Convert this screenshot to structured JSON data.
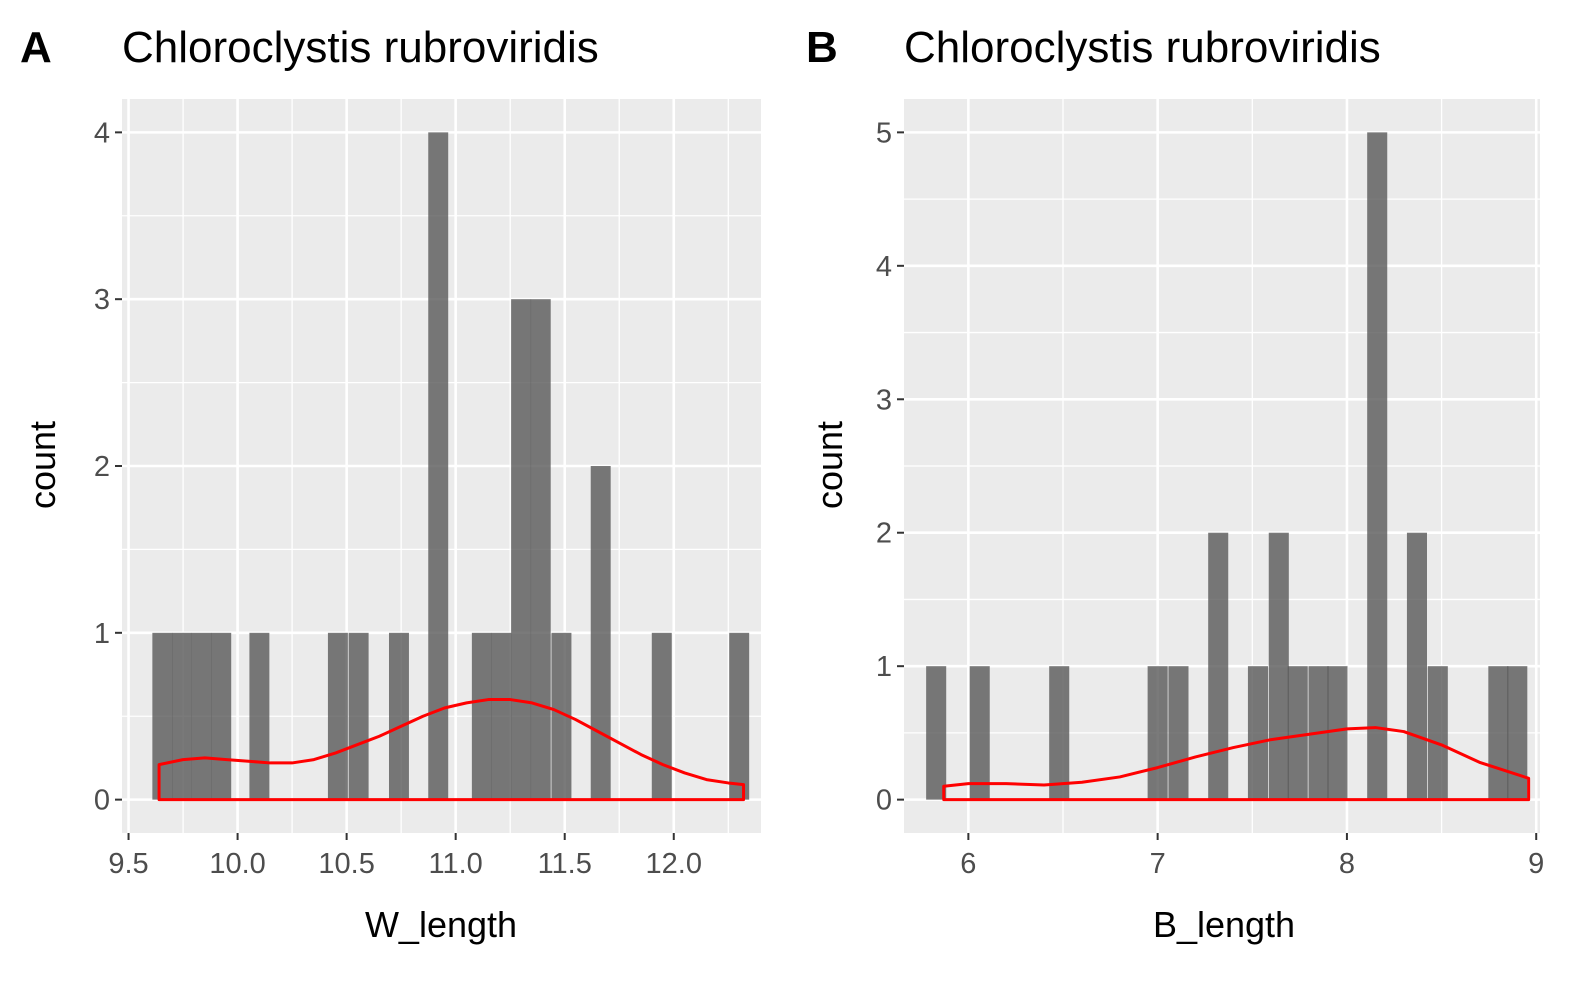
{
  "colors": {
    "panel_background": "#ebebeb",
    "grid": "#ffffff",
    "bar": "#595959",
    "density": "#ff0000",
    "tick_label": "#4d4d4d",
    "text": "#000000"
  },
  "chart_data": [
    {
      "panel_label": "A",
      "type": "bar",
      "title": "Chloroclystis rubroviridis",
      "xlabel": "W_length",
      "ylabel": "count",
      "xlim": [
        9.47,
        12.4
      ],
      "ylim": [
        -0.2,
        4.2
      ],
      "x_ticks": [
        9.5,
        10.0,
        10.5,
        11.0,
        11.5,
        12.0
      ],
      "x_tick_labels": [
        "9.5",
        "10.0",
        "10.5",
        "11.0",
        "11.5",
        "12.0"
      ],
      "y_ticks": [
        0,
        1,
        2,
        3,
        4
      ],
      "y_tick_labels": [
        "0",
        "1",
        "2",
        "3",
        "4"
      ],
      "grid": true,
      "bin_width": 0.0915,
      "bars": [
        {
          "x": 9.655,
          "count": 1
        },
        {
          "x": 9.745,
          "count": 1
        },
        {
          "x": 9.835,
          "count": 1
        },
        {
          "x": 9.925,
          "count": 1
        },
        {
          "x": 10.1,
          "count": 1
        },
        {
          "x": 10.46,
          "count": 1
        },
        {
          "x": 10.555,
          "count": 1
        },
        {
          "x": 10.74,
          "count": 1
        },
        {
          "x": 10.92,
          "count": 4
        },
        {
          "x": 11.12,
          "count": 1
        },
        {
          "x": 11.21,
          "count": 1
        },
        {
          "x": 11.3,
          "count": 3
        },
        {
          "x": 11.39,
          "count": 3
        },
        {
          "x": 11.485,
          "count": 1
        },
        {
          "x": 11.665,
          "count": 2
        },
        {
          "x": 11.945,
          "count": 1
        },
        {
          "x": 12.3,
          "count": 1
        }
      ],
      "density": {
        "x": [
          9.64,
          9.75,
          9.85,
          9.95,
          10.05,
          10.15,
          10.25,
          10.35,
          10.45,
          10.55,
          10.65,
          10.75,
          10.85,
          10.95,
          11.05,
          11.15,
          11.25,
          11.35,
          11.45,
          11.55,
          11.65,
          11.75,
          11.85,
          11.95,
          12.05,
          12.15,
          12.25,
          12.32
        ],
        "y": [
          0.21,
          0.24,
          0.25,
          0.24,
          0.23,
          0.22,
          0.22,
          0.24,
          0.28,
          0.33,
          0.38,
          0.44,
          0.5,
          0.55,
          0.58,
          0.6,
          0.6,
          0.58,
          0.54,
          0.48,
          0.41,
          0.34,
          0.27,
          0.21,
          0.16,
          0.12,
          0.1,
          0.09
        ]
      }
    },
    {
      "panel_label": "B",
      "type": "bar",
      "title": "Chloroclystis rubroviridis",
      "xlabel": "B_length",
      "ylabel": "count",
      "xlim": [
        5.66,
        9.02
      ],
      "ylim": [
        -0.25,
        5.25
      ],
      "x_ticks": [
        6,
        7,
        8,
        9
      ],
      "x_tick_labels": [
        "6",
        "7",
        "8",
        "9"
      ],
      "y_ticks": [
        0,
        1,
        2,
        3,
        4,
        5
      ],
      "y_tick_labels": [
        "0",
        "1",
        "2",
        "3",
        "4",
        "5"
      ],
      "grid": true,
      "bin_width": 0.106,
      "bars": [
        {
          "x": 5.83,
          "count": 1
        },
        {
          "x": 6.06,
          "count": 1
        },
        {
          "x": 6.48,
          "count": 1
        },
        {
          "x": 7.0,
          "count": 1
        },
        {
          "x": 7.11,
          "count": 1
        },
        {
          "x": 7.32,
          "count": 2
        },
        {
          "x": 7.53,
          "count": 1
        },
        {
          "x": 7.64,
          "count": 2
        },
        {
          "x": 7.74,
          "count": 1
        },
        {
          "x": 7.85,
          "count": 1
        },
        {
          "x": 7.95,
          "count": 1
        },
        {
          "x": 8.16,
          "count": 5
        },
        {
          "x": 8.37,
          "count": 2
        },
        {
          "x": 8.48,
          "count": 1
        },
        {
          "x": 8.8,
          "count": 1
        },
        {
          "x": 8.9,
          "count": 1
        }
      ],
      "density": {
        "x": [
          5.87,
          6.0,
          6.2,
          6.4,
          6.6,
          6.8,
          7.0,
          7.2,
          7.4,
          7.6,
          7.8,
          8.0,
          8.15,
          8.3,
          8.5,
          8.7,
          8.96
        ],
        "y": [
          0.1,
          0.12,
          0.12,
          0.11,
          0.13,
          0.17,
          0.24,
          0.32,
          0.39,
          0.45,
          0.49,
          0.53,
          0.54,
          0.51,
          0.41,
          0.28,
          0.16
        ]
      }
    }
  ]
}
